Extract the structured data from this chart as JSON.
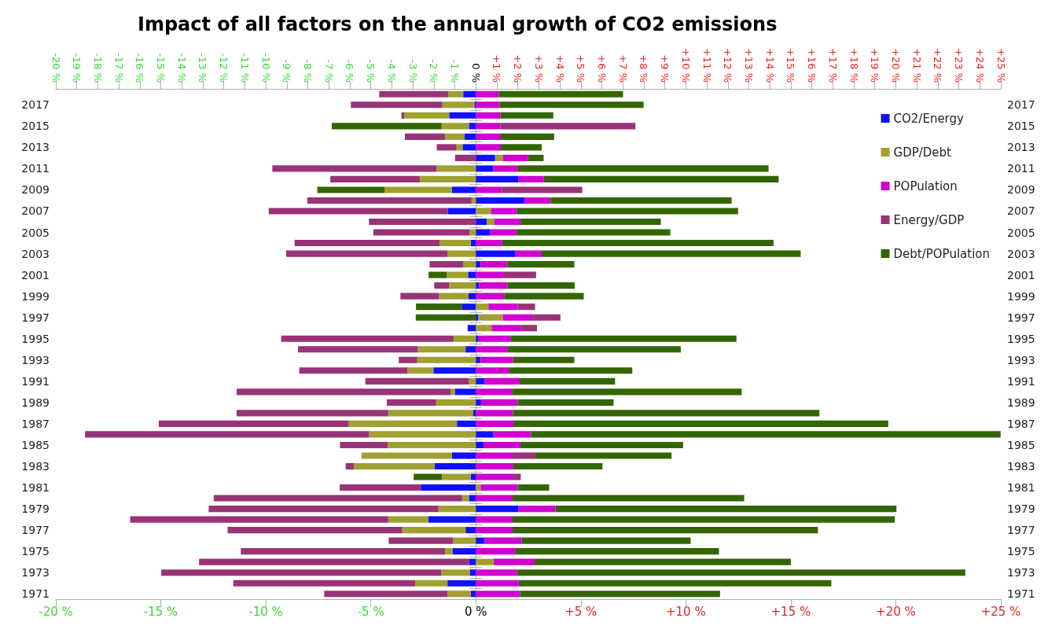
{
  "chart_data": {
    "type": "bar",
    "orientation": "horizontal",
    "stacked": true,
    "title": "Impact of all factors on the annual growth of CO2 emissions",
    "legend": "top right",
    "categories": [
      null,
      "2017",
      null,
      "2015",
      null,
      "2013",
      null,
      "2011",
      null,
      "2009",
      null,
      "2007",
      null,
      "2005",
      null,
      "2003",
      null,
      "2001",
      null,
      "1999",
      null,
      "1997",
      null,
      "1995",
      null,
      "1993",
      null,
      "1991",
      null,
      "1989",
      null,
      "1987",
      null,
      "1985",
      null,
      "1983",
      null,
      "1981",
      null,
      "1979",
      null,
      "1977",
      null,
      "1975",
      null,
      "1973",
      null,
      "1971"
    ],
    "xlim": [
      -20,
      25
    ],
    "xticks": [
      {
        "value": -20,
        "label": "-20 %"
      },
      {
        "value": -15,
        "label": "-15 %"
      },
      {
        "value": -10,
        "label": "-10 %"
      },
      {
        "value": -5,
        "label": "-5 %"
      },
      {
        "value": 0,
        "label": "0 %"
      },
      {
        "value": 5,
        "label": "+5 %"
      },
      {
        "value": 10,
        "label": "+10 %"
      },
      {
        "value": 15,
        "label": "+15 %"
      },
      {
        "value": 20,
        "label": "+20 %"
      },
      {
        "value": 25,
        "label": "+25 %"
      }
    ],
    "x2lim": [
      -20,
      25
    ],
    "x2ticks": [
      {
        "value": -20,
        "label": "-20 %"
      },
      {
        "value": -19,
        "label": "-19 %"
      },
      {
        "value": -18,
        "label": "-18 %"
      },
      {
        "value": -17,
        "label": "-17 %"
      },
      {
        "value": -16,
        "label": "-16 %"
      },
      {
        "value": -15,
        "label": "-15 %"
      },
      {
        "value": -14,
        "label": "-14 %"
      },
      {
        "value": -13,
        "label": "-13 %"
      },
      {
        "value": -12,
        "label": "-12 %"
      },
      {
        "value": -11,
        "label": "-11 %"
      },
      {
        "value": -10,
        "label": "-10 %"
      },
      {
        "value": -9,
        "label": "-9 %"
      },
      {
        "value": -8,
        "label": "-8 %"
      },
      {
        "value": -7,
        "label": "-7 %"
      },
      {
        "value": -6,
        "label": "-6 %"
      },
      {
        "value": -5,
        "label": "-5 %"
      },
      {
        "value": -4,
        "label": "-4 %"
      },
      {
        "value": -3,
        "label": "-3 %"
      },
      {
        "value": -2,
        "label": "-2 %"
      },
      {
        "value": -1,
        "label": "-1 %"
      },
      {
        "value": 0,
        "label": "0 %"
      },
      {
        "value": 1,
        "label": "+1 %"
      },
      {
        "value": 2,
        "label": "+2 %"
      },
      {
        "value": 3,
        "label": "+3 %"
      },
      {
        "value": 4,
        "label": "+4 %"
      },
      {
        "value": 5,
        "label": "+5 %"
      },
      {
        "value": 6,
        "label": "+6 %"
      },
      {
        "value": 7,
        "label": "+7 %"
      },
      {
        "value": 8,
        "label": "+8 %"
      },
      {
        "value": 9,
        "label": "+9 %"
      },
      {
        "value": 10,
        "label": "+10 %"
      },
      {
        "value": 11,
        "label": "+11 %"
      },
      {
        "value": 12,
        "label": "+12 %"
      },
      {
        "value": 13,
        "label": "+13 %"
      },
      {
        "value": 14,
        "label": "+14 %"
      },
      {
        "value": 15,
        "label": "+15 %"
      },
      {
        "value": 16,
        "label": "+16 %"
      },
      {
        "value": 17,
        "label": "+17 %"
      },
      {
        "value": 18,
        "label": "+18 %"
      },
      {
        "value": 19,
        "label": "+19 %"
      },
      {
        "value": 20,
        "label": "+20 %"
      },
      {
        "value": 21,
        "label": "+21 %"
      },
      {
        "value": 22,
        "label": "+22 %"
      },
      {
        "value": 23,
        "label": "+23 %"
      },
      {
        "value": 24,
        "label": "+24 %"
      },
      {
        "value": 25,
        "label": "+25 %"
      }
    ],
    "series": [
      {
        "name": "CO2/Energy",
        "color": "#1010ff",
        "values": [
          -0.6,
          -0.07,
          -1.27,
          -0.33,
          -0.53,
          -0.63,
          0.92,
          0.84,
          2.04,
          -1.14,
          2.31,
          -1.34,
          0.53,
          0.67,
          -0.24,
          1.89,
          0.23,
          -0.37,
          0.15,
          -0.35,
          -0.67,
          0.12,
          -0.39,
          0.13,
          -0.49,
          0.23,
          -2.02,
          0.4,
          -1.0,
          0.25,
          -0.12,
          -0.9,
          0.84,
          0.37,
          -1.14,
          -1.97,
          -0.24,
          -2.62,
          -0.33,
          2.02,
          -2.27,
          -0.49,
          0.4,
          -1.11,
          -0.33,
          -0.29,
          -1.35,
          -0.24
        ]
      },
      {
        "name": "GDP/Debt",
        "color": "#a0a030",
        "values": [
          -0.72,
          -1.52,
          -2.14,
          -1.3,
          -0.94,
          -0.29,
          0.38,
          -1.87,
          -2.67,
          -3.21,
          -0.2,
          0.72,
          0.35,
          -0.29,
          -1.48,
          -1.34,
          -0.61,
          -1.02,
          -1.27,
          -1.4,
          0.6,
          1.17,
          0.75,
          -1.06,
          -2.27,
          -2.79,
          -1.24,
          -0.33,
          -0.19,
          -1.89,
          -4.05,
          -5.15,
          -5.08,
          -4.2,
          -4.3,
          -3.84,
          -1.38,
          0.23,
          -0.32,
          -1.78,
          -1.9,
          -3.01,
          -1.08,
          -0.35,
          0.85,
          -1.35,
          -1.54,
          -1.11
        ]
      },
      {
        "name": "POPulation",
        "color": "#d000d0",
        "values": [
          1.1,
          1.14,
          1.17,
          1.17,
          1.19,
          1.19,
          1.19,
          1.17,
          1.2,
          1.24,
          1.25,
          1.24,
          1.25,
          1.27,
          1.25,
          1.25,
          1.27,
          1.3,
          1.35,
          1.35,
          1.4,
          1.44,
          1.44,
          1.54,
          1.52,
          1.55,
          1.57,
          1.69,
          1.72,
          1.75,
          1.77,
          1.79,
          1.79,
          1.75,
          1.75,
          1.79,
          1.79,
          1.77,
          1.75,
          1.77,
          1.75,
          1.75,
          1.79,
          1.87,
          1.95,
          1.97,
          2.04,
          2.11
        ]
      },
      {
        "name": "Energy/GDP",
        "color": "#993377",
        "values": [
          -3.28,
          -4.36,
          -0.13,
          6.43,
          -1.91,
          -0.94,
          -0.99,
          -7.82,
          -4.26,
          3.83,
          -7.82,
          -8.52,
          -5.09,
          -4.59,
          -6.91,
          -7.69,
          -1.59,
          1.57,
          -0.71,
          -1.84,
          0.82,
          1.3,
          0.72,
          -8.21,
          -5.71,
          -0.88,
          -5.15,
          -4.93,
          -10.2,
          -2.35,
          -7.22,
          -9.05,
          -13.53,
          -2.27,
          1.09,
          -0.39,
          0.35,
          -3.86,
          -11.83,
          -10.94,
          -12.29,
          -8.32,
          -3.07,
          -9.73,
          -12.85,
          -13.34,
          -8.66,
          -5.87
        ]
      },
      {
        "name": "Debt/POPulation",
        "color": "#336600",
        "values": [
          5.91,
          6.85,
          2.52,
          -5.23,
          2.54,
          1.95,
          0.74,
          11.93,
          11.18,
          -3.2,
          8.62,
          10.53,
          6.68,
          7.32,
          12.93,
          12.33,
          3.19,
          -0.86,
          3.21,
          3.79,
          -2.18,
          -2.86,
          null,
          10.74,
          8.24,
          2.91,
          5.88,
          4.54,
          10.94,
          4.56,
          14.59,
          17.85,
          22.36,
          7.75,
          6.48,
          4.24,
          -1.34,
          1.49,
          11.03,
          16.24,
          18.2,
          14.54,
          8.04,
          9.71,
          12.2,
          21.34,
          14.89,
          9.52
        ]
      }
    ]
  }
}
